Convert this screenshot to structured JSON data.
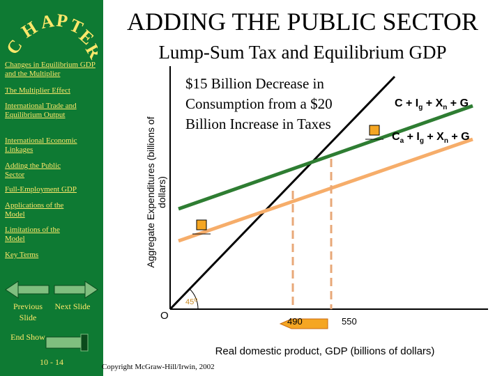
{
  "sidebar": {
    "chapter_text": "CHAPTER",
    "items": [
      {
        "label": "Changes in Equilibrium GDP and the Multiplier"
      },
      {
        "label": "The Multiplier Effect"
      },
      {
        "label": "International Trade and Equilibrium Output"
      },
      {
        "label": "International Economic Linkages"
      },
      {
        "label": "Adding the Public Sector"
      },
      {
        "label": "Full-Employment GDP"
      },
      {
        "label": "Applications of the Model"
      },
      {
        "label": "Limitations of the Model"
      },
      {
        "label": "Key Terms"
      }
    ],
    "previous_label": "Previous Slide",
    "next_label": "Next Slide",
    "end_label": "End Show",
    "slide_number": "10 - 14"
  },
  "slide": {
    "title": "ADDING THE PUBLIC SECTOR",
    "subtitle": "Lump-Sum Tax and Equilibrium GDP",
    "copyright": "Copyright McGraw-Hill/Irwin,  2002"
  },
  "colors": {
    "sidebar_bg": "#0e7a33",
    "nav_text": "#ffe86b",
    "original_curve": "#2e7d32",
    "after_tax_curve": "#f6ad6a",
    "arrow": "#f5a623",
    "guide_line": "#e8a878"
  },
  "chart_data": {
    "type": "line",
    "xlabel": "Real domestic product, GDP (billions of dollars)",
    "ylabel": "Aggregate Expenditures (billions of dollars)",
    "origin_label": "O",
    "angle_label": "45",
    "x_ticks": [
      "490",
      "550"
    ],
    "note": "$15 Billion Decrease in Consumption from a $20 Billion Increase in Taxes",
    "series": [
      {
        "name": "C + Ig + Xn + G"
      },
      {
        "name": "Ca + Ig + Xn + G"
      }
    ]
  }
}
